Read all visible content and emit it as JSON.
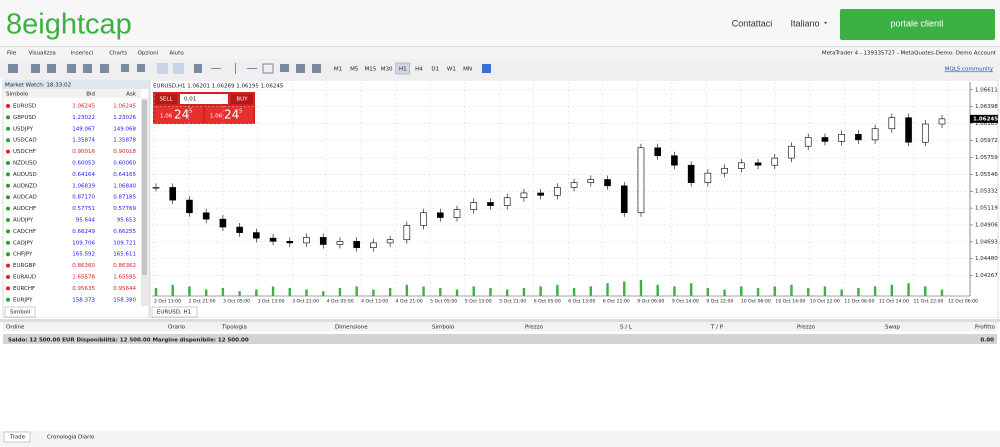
{
  "header": {
    "logo": "8eightcap",
    "links": [
      "Contattaci",
      "Italiano"
    ],
    "button": "portale clienti"
  },
  "menu": {
    "items": [
      "File",
      "Visualizza",
      "Inserisci",
      "Charts",
      "Opzioni",
      "Aiuto"
    ],
    "account": "MetaTrader 4 - 139335727 - MetaQuotes-Demo: Demo Account"
  },
  "toolbar": {
    "timeframes": [
      {
        "label": "M1"
      },
      {
        "label": "M5"
      },
      {
        "label": "M15"
      },
      {
        "label": "M30"
      },
      {
        "label": "H1",
        "selected": true
      },
      {
        "label": "H4"
      },
      {
        "label": "D1"
      },
      {
        "label": "W1"
      },
      {
        "label": "MN"
      }
    ],
    "community": "MQL5.community"
  },
  "market_watch": {
    "title": "Market Watch: 18:33:02",
    "columns": [
      "Simbolo",
      "Bid",
      "Ask"
    ],
    "tab": "Simboli",
    "rows": [
      {
        "symbol": "EURUSD",
        "bid": "1.06245",
        "ask": "1.06245",
        "color": "#e02020"
      },
      {
        "symbol": "GBPUSD",
        "bid": "1.23022",
        "ask": "1.23026",
        "color": "#1a1aff"
      },
      {
        "symbol": "USDJPY",
        "bid": "149.067",
        "ask": "149.068",
        "color": "#1a1aff"
      },
      {
        "symbol": "USDCAD",
        "bid": "1.35874",
        "ask": "1.35878",
        "color": "#1a1aff"
      },
      {
        "symbol": "USDCHF",
        "bid": "0.90016",
        "ask": "0.90018",
        "color": "#e02020"
      },
      {
        "symbol": "NZDUSD",
        "bid": "0.60053",
        "ask": "0.60060",
        "color": "#1a1aff"
      },
      {
        "symbol": "AUDUSD",
        "bid": "0.64164",
        "ask": "0.64165",
        "color": "#1a1aff"
      },
      {
        "symbol": "AUDNZD",
        "bid": "1.06839",
        "ask": "1.06840",
        "color": "#1a1aff"
      },
      {
        "symbol": "AUDCAD",
        "bid": "0.87170",
        "ask": "0.87185",
        "color": "#1a1aff"
      },
      {
        "symbol": "AUDCHF",
        "bid": "0.57751",
        "ask": "0.57769",
        "color": "#1a1aff"
      },
      {
        "symbol": "AUDJPY",
        "bid": "95.644",
        "ask": "95.653",
        "color": "#1a1aff"
      },
      {
        "symbol": "CADCHF",
        "bid": "0.66249",
        "ask": "0.66255",
        "color": "#1a1aff"
      },
      {
        "symbol": "CADJPY",
        "bid": "109.706",
        "ask": "109.721",
        "color": "#1a1aff"
      },
      {
        "symbol": "CHFJPY",
        "bid": "165.592",
        "ask": "165.611",
        "color": "#1a1aff"
      },
      {
        "symbol": "EURGBP",
        "bid": "0.86360",
        "ask": "0.86362",
        "color": "#e02020"
      },
      {
        "symbol": "EURAUD",
        "bid": "1.65578",
        "ask": "1.65595",
        "color": "#e02020"
      },
      {
        "symbol": "EURCHF",
        "bid": "0.95635",
        "ask": "0.95644",
        "color": "#e02020"
      },
      {
        "symbol": "EURJPY",
        "bid": "158.373",
        "ask": "158.380",
        "color": "#1a1aff"
      }
    ]
  },
  "trade_panel": {
    "sell": "SELL",
    "lot": "0.01",
    "buy": "BUY",
    "sell_price": [
      "1.06",
      "24",
      "5"
    ],
    "buy_price": [
      "1.06",
      "24",
      "5"
    ]
  },
  "chart_data": {
    "type": "candlestick",
    "info": "EURUSD,H1  1.06201 1.06269 1.06195 1.06245",
    "tab": "EURUSD, H1",
    "ylim": [
      1.0401,
      1.0671
    ],
    "yticks": [
      1.06611,
      1.06398,
      1.06185,
      1.05972,
      1.05759,
      1.05546,
      1.05332,
      1.05119,
      1.04906,
      1.04693,
      {
        "value": 1.0448,
        "label": "1.04480"
      },
      1.04267
    ],
    "current": 1.06245,
    "xlabels": [
      "2 Oct 13:00",
      "2 Oct 21:00",
      "3 Oct 05:00",
      "3 Oct 13:00",
      "3 Oct 21:00",
      "4 Oct 05:00",
      "4 Oct 13:00",
      "4 Oct 21:00",
      "5 Oct 05:00",
      "5 Oct 13:00",
      "5 Oct 21:00",
      "6 Oct 05:00",
      "6 Oct 13:00",
      "6 Oct 21:00",
      "9 Oct 06:00",
      "9 Oct 14:00",
      "9 Oct 22:00",
      "10 Oct 06:00",
      "10 Oct 14:00",
      "10 Oct 22:00",
      "11 Oct 06:00",
      "11 Oct 14:00",
      "11 Oct 22:00",
      "12 Oct 06:00"
    ],
    "closes": [
      1.0538,
      1.0522,
      1.0506,
      1.0498,
      1.0488,
      1.0481,
      1.0474,
      1.047,
      1.0468,
      1.0475,
      1.0466,
      1.047,
      1.0462,
      1.0468,
      1.0472,
      1.049,
      1.0506,
      1.05,
      1.051,
      1.0519,
      1.0515,
      1.0525,
      1.0531,
      1.0528,
      1.0538,
      1.0544,
      1.0548,
      1.054,
      1.0506,
      1.0588,
      1.0578,
      1.0566,
      1.0544,
      1.0556,
      1.0562,
      1.0569,
      1.0566,
      1.0575,
      1.059,
      1.0601,
      1.0596,
      1.0605,
      1.0598,
      1.0612,
      1.0626,
      1.0595,
      1.0618,
      1.06245
    ],
    "volumes": [
      5,
      7,
      6,
      4,
      5,
      3,
      4,
      6,
      5,
      4,
      3,
      5,
      6,
      4,
      5,
      7,
      6,
      5,
      4,
      6,
      5,
      4,
      5,
      6,
      7,
      5,
      6,
      8,
      9,
      10,
      7,
      6,
      8,
      5,
      4,
      6,
      5,
      6,
      7,
      5,
      6,
      4,
      5,
      6,
      7,
      8,
      6,
      4
    ],
    "up_color": "#ffffff",
    "down_color": "#000000",
    "volume_color": "#3cb043",
    "grid": true
  },
  "terminal": {
    "columns": [
      "Ordine",
      "Orario",
      "Tipologia",
      "Dimensione",
      "Simbolo",
      "Prezzo",
      "S / L",
      "T / P",
      "Prezzo",
      "Swap",
      "Profitto"
    ],
    "balance": "Saldo: 12 500.00 EUR  Disponibilità: 12 500.00  Margine disponibile: 12 500.00",
    "profit": "0.00",
    "tabs": [
      "Trade",
      "Cronologia",
      "Diario"
    ]
  }
}
